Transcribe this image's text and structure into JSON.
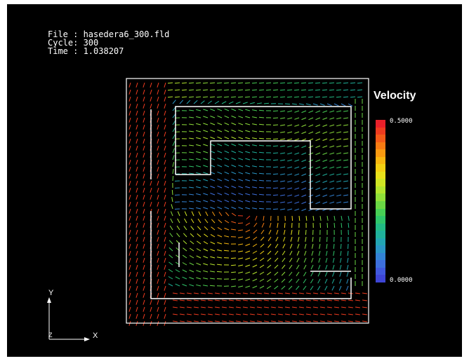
{
  "header": {
    "file": "File : hasedera6_300.fld",
    "cycle": "Cycle: 300",
    "time": "Time : 1.038207"
  },
  "legend": {
    "title": "Velocity",
    "max": "0.5000",
    "min": "0.0000",
    "colors": [
      "#e8202a",
      "#ee3b1f",
      "#f35a18",
      "#f77b12",
      "#f99a10",
      "#f8b70f",
      "#f3d012",
      "#e8e11a",
      "#cfe624",
      "#b2e52e",
      "#8fdf39",
      "#6ad744",
      "#47cf55",
      "#2fc66a",
      "#22bb84",
      "#1fb19c",
      "#22a5b3",
      "#2a96c6",
      "#3383d5",
      "#3d6fdd",
      "#4058dd",
      "#3e45d6"
    ]
  },
  "axes": {
    "y": "Y",
    "x": "X",
    "z": "Z"
  },
  "colors": {
    "background": "#000000",
    "frame": "#ffffff",
    "walls": "#ffffff"
  }
}
